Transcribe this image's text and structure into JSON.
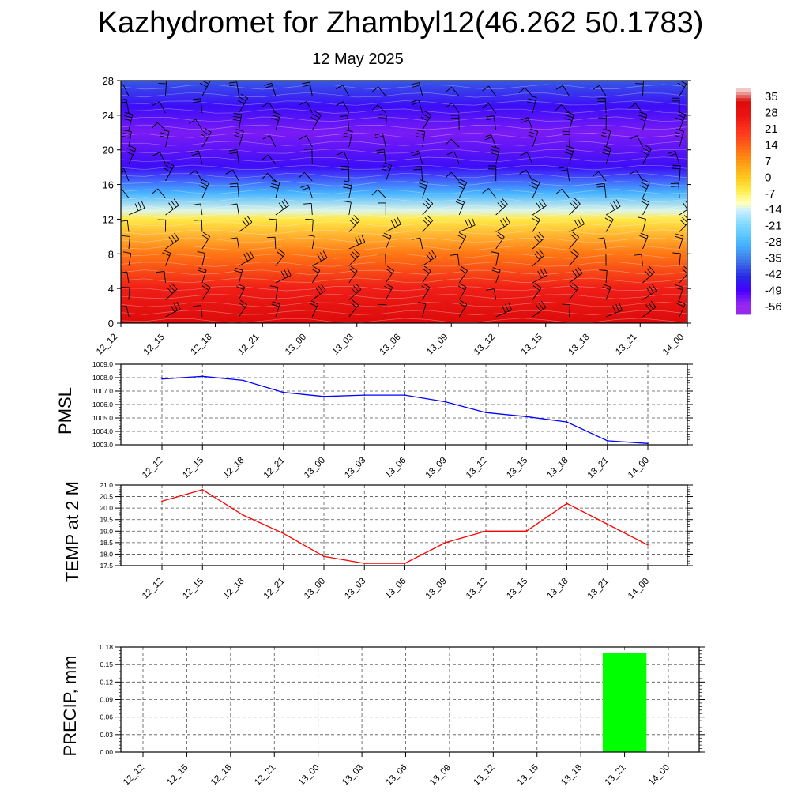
{
  "header": {
    "title": "Kazhydromet for Zhambyl12(46.262 50.1783)",
    "subtitle": "12 May 2025"
  },
  "time_labels": [
    "12_12",
    "12_15",
    "12_18",
    "12_21",
    "13_00",
    "13_03",
    "13_06",
    "13_09",
    "13_12",
    "13_15",
    "13_18",
    "13_21",
    "14_00"
  ],
  "chart_data": [
    {
      "type": "heatmap",
      "name": "temperature-wind-cross-section",
      "title": "",
      "x": [
        "12_12",
        "12_15",
        "12_18",
        "12_21",
        "13_00",
        "13_03",
        "13_06",
        "13_09",
        "13_12",
        "13_15",
        "13_18",
        "13_21",
        "14_00"
      ],
      "y_ticks": [
        0,
        4,
        8,
        12,
        16,
        20,
        24,
        28
      ],
      "ylim": [
        0,
        28
      ],
      "colorbar_labels": [
        "35",
        "28",
        "21",
        "14",
        "7",
        "0",
        "-7",
        "-14",
        "-21",
        "-28",
        "-35",
        "-42",
        "-49",
        "-56"
      ],
      "profile": [
        {
          "y": 0,
          "value": 30
        },
        {
          "y": 4,
          "value": 22
        },
        {
          "y": 8,
          "value": 8
        },
        {
          "y": 12,
          "value": -8
        },
        {
          "y": 13,
          "value": -16
        },
        {
          "y": 15,
          "value": -32
        },
        {
          "y": 18,
          "value": -50
        },
        {
          "y": 22,
          "value": -56
        },
        {
          "y": 25,
          "value": -50
        },
        {
          "y": 28,
          "value": -42
        }
      ],
      "wind_barbs": "shown"
    },
    {
      "type": "line",
      "name": "pmsl",
      "ylabel": "PMSL",
      "categories": [
        "12_12",
        "12_15",
        "12_18",
        "12_21",
        "13_00",
        "13_03",
        "13_06",
        "13_09",
        "13_12",
        "13_15",
        "13_18",
        "13_21",
        "14_00"
      ],
      "values": [
        1007.9,
        1008.1,
        1007.8,
        1006.9,
        1006.6,
        1006.7,
        1006.7,
        1006.2,
        1005.4,
        1005.1,
        1004.7,
        1003.3,
        1003.1
      ],
      "y_ticks": [
        "1003.0",
        "1004.0",
        "1005.0",
        "1006.0",
        "1007.0",
        "1008.0",
        "1009.0"
      ],
      "ylim": [
        1003.0,
        1009.0
      ],
      "color": "#0000ff",
      "grid": true
    },
    {
      "type": "line",
      "name": "temp-2m",
      "ylabel": "TEMP at 2 M",
      "categories": [
        "12_12",
        "12_15",
        "12_18",
        "12_21",
        "13_00",
        "13_03",
        "13_06",
        "13_09",
        "13_12",
        "13_15",
        "13_18",
        "13_21",
        "14_00"
      ],
      "values": [
        20.3,
        20.8,
        19.7,
        18.9,
        17.9,
        17.6,
        17.6,
        18.5,
        19.0,
        19.0,
        20.2,
        19.3,
        18.4
      ],
      "y_ticks": [
        "17.5",
        "18.0",
        "18.5",
        "19.0",
        "19.5",
        "20.0",
        "20.5",
        "21.0"
      ],
      "ylim": [
        17.5,
        21.0
      ],
      "color": "#ff0000",
      "grid": true
    },
    {
      "type": "bar",
      "name": "precip",
      "ylabel": "PRECIP, mm",
      "categories": [
        "12_12",
        "12_15",
        "12_18",
        "12_21",
        "13_00",
        "13_03",
        "13_06",
        "13_09",
        "13_12",
        "13_15",
        "13_18",
        "13_21",
        "14_00"
      ],
      "values": [
        0,
        0,
        0,
        0,
        0,
        0,
        0,
        0,
        0,
        0,
        0,
        0.17,
        0
      ],
      "y_ticks": [
        "0.00",
        "0.03",
        "0.06",
        "0.09",
        "0.12",
        "0.15",
        "0.18"
      ],
      "ylim": [
        0,
        0.18
      ],
      "color": "#00ff00",
      "grid": true
    }
  ]
}
